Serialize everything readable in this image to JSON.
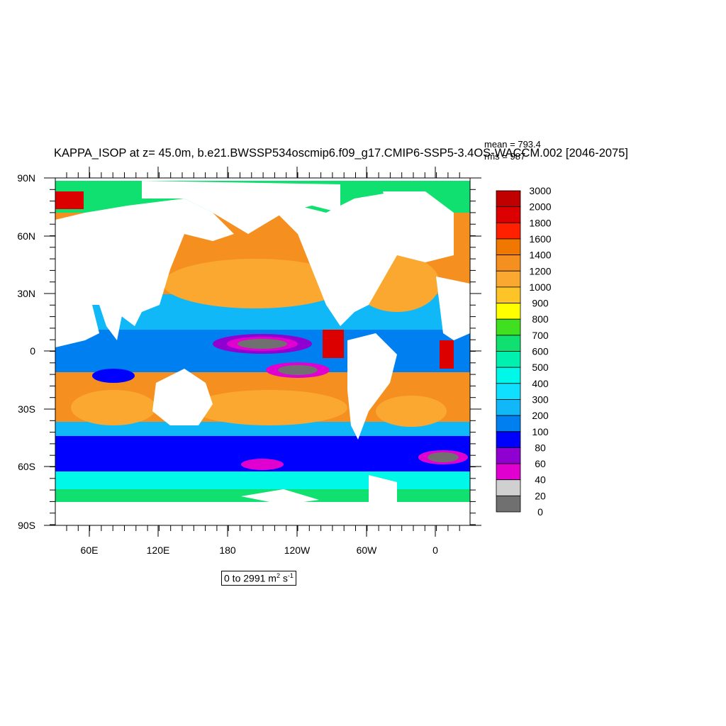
{
  "title": "KAPPA_ISOP at z=  45.0m, b.e21.BWSSP534oscmip6.f09_g17.CMIP6-SSP5-3.4OS-WACCM.002 [2046-2075]",
  "stats": {
    "mean": "mean = 793.4",
    "rms": "rms = 987"
  },
  "axes": {
    "lat_labels": [
      "90N",
      "60N",
      "30N",
      "0",
      "30S",
      "60S",
      "90S"
    ],
    "lon_labels": [
      "60E",
      "120E",
      "180",
      "120W",
      "60W",
      "0"
    ]
  },
  "colorbar": {
    "levels": [
      "3000",
      "2000",
      "1800",
      "1600",
      "1400",
      "1200",
      "1000",
      "900",
      "800",
      "700",
      "600",
      "500",
      "400",
      "300",
      "200",
      "100",
      "80",
      "60",
      "40",
      "20",
      "0"
    ],
    "colors": [
      "#c00000",
      "#dd0000",
      "#ff2000",
      "#f07800",
      "#f59020",
      "#fba830",
      "#fdc428",
      "#ffff00",
      "#40e020",
      "#10e070",
      "#00f0b0",
      "#00f8e8",
      "#10e0ff",
      "#10b8f8",
      "#0080f0",
      "#0000ff",
      "#9000d0",
      "#e000d0",
      "#d0d0d0",
      "#707070"
    ]
  },
  "range": {
    "text": "0 to 2991 m",
    "sup1": "2",
    "mid": " s",
    "sup2": "-1"
  },
  "colors": {
    "land": "#ffffff",
    "ocean_high": "#f59020",
    "ocean_low": "#0080f0"
  }
}
